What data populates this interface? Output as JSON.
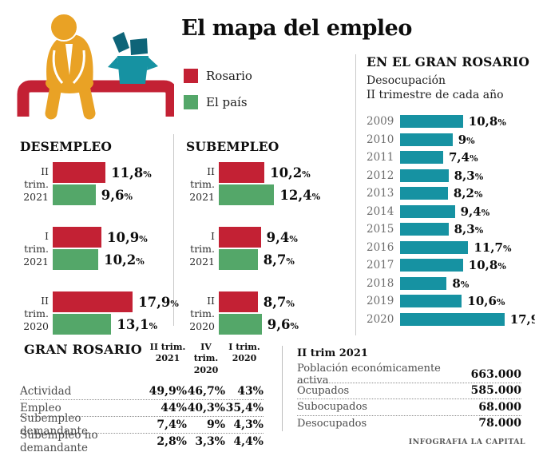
{
  "title": "El mapa del empleo",
  "footer": "INFOGRAFIA LA CAPITAL",
  "colors": {
    "rosario_red": "#c32134",
    "pais_green": "#54a769",
    "teal": "#1692a2",
    "dark_teal": "#0e6478",
    "orange": "#e9a225"
  },
  "legend": {
    "items": [
      {
        "label": "Rosario",
        "color": "#c32134"
      },
      {
        "label": "El país",
        "color": "#54a769"
      }
    ]
  },
  "chart_data": [
    {
      "id": "desempleo",
      "type": "bar",
      "orientation": "horizontal",
      "title": "DESEMPLEO",
      "unit": "%",
      "xlim": [
        0,
        20
      ],
      "categories": [
        "II trim. 2021",
        "I trim. 2021",
        "II trim. 2020"
      ],
      "series": [
        {
          "name": "Rosario",
          "color": "#c32134",
          "values": [
            11.8,
            10.9,
            17.9
          ],
          "labels": [
            "11,8",
            "10,9",
            "17,9"
          ]
        },
        {
          "name": "El país",
          "color": "#54a769",
          "values": [
            9.6,
            10.2,
            13.1
          ],
          "labels": [
            "9,6",
            "10,2",
            "13,1"
          ]
        }
      ]
    },
    {
      "id": "subempleo",
      "type": "bar",
      "orientation": "horizontal",
      "title": "SUBEMPLEO",
      "unit": "%",
      "xlim": [
        0,
        20
      ],
      "categories": [
        "II trim. 2021",
        "I trim. 2021",
        "II trim. 2020"
      ],
      "series": [
        {
          "name": "Rosario",
          "color": "#c32134",
          "values": [
            10.2,
            9.4,
            8.7
          ],
          "labels": [
            "10,2",
            "9,4",
            "8,7"
          ]
        },
        {
          "name": "El país",
          "color": "#54a769",
          "values": [
            12.4,
            8.7,
            9.6
          ],
          "labels": [
            "12,4",
            "8,7",
            "9,6"
          ]
        }
      ]
    },
    {
      "id": "gran-rosario-desocupacion",
      "type": "bar",
      "orientation": "horizontal",
      "title": "EN EL GRAN ROSARIO",
      "subtitle": [
        "Desocupación",
        "II trimestre de cada año"
      ],
      "unit": "%",
      "xlim": [
        0,
        20
      ],
      "color": "#1692a2",
      "categories": [
        "2009",
        "2010",
        "2011",
        "2012",
        "2013",
        "2014",
        "2015",
        "2016",
        "2017",
        "2018",
        "2019",
        "2020"
      ],
      "values": [
        10.8,
        9,
        7.4,
        8.3,
        8.2,
        9.4,
        8.3,
        11.7,
        10.8,
        8,
        10.6,
        17.9
      ],
      "labels": [
        "10,8",
        "9",
        "7,4",
        "8,3",
        "8,2",
        "9,4",
        "8,3",
        "11,7",
        "10,8",
        "8",
        "10,6",
        "17,9"
      ]
    },
    {
      "id": "gran-rosario-table",
      "type": "table",
      "title": "GRAN ROSARIO",
      "columns": [
        "II trim. 2021",
        "IV trim. 2020",
        "I trim. 2020"
      ],
      "rows": [
        {
          "label": "Actividad",
          "values": [
            "49,9%",
            "46,7%",
            "43%"
          ]
        },
        {
          "label": "Empleo",
          "values": [
            "44%",
            "40,3%",
            "35,4%"
          ]
        },
        {
          "label": "Subempleo demandante",
          "values": [
            "7,4%",
            "9%",
            "4,3%"
          ]
        },
        {
          "label": "Subempleo no demandante",
          "values": [
            "2,8%",
            "3,3%",
            "4,4%"
          ]
        }
      ]
    },
    {
      "id": "ii-trim-2021-table",
      "type": "table",
      "title": "II trim 2021",
      "rows": [
        {
          "label": "Población económicamente activa",
          "value": "663.000"
        },
        {
          "label": "Ocupados",
          "value": "585.000"
        },
        {
          "label": "Subocupados",
          "value": "68.000"
        },
        {
          "label": "Desocupados",
          "value": "78.000"
        }
      ]
    }
  ]
}
